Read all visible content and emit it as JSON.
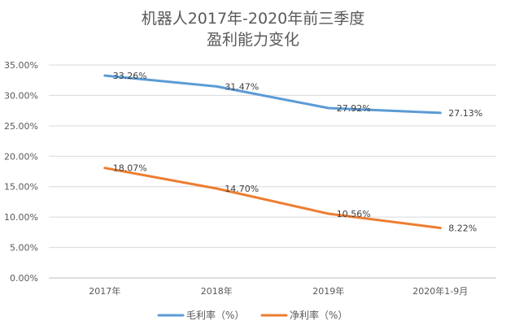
{
  "chart_data": {
    "type": "line",
    "title_lines": [
      "机器人2017年-2020年前三季度",
      "盈利能力变化"
    ],
    "categories": [
      "2017年",
      "2018年",
      "2019年",
      "2020年1-9月"
    ],
    "y_ticks": [
      "0.00%",
      "5.00%",
      "10.00%",
      "15.00%",
      "20.00%",
      "25.00%",
      "30.00%",
      "35.00%"
    ],
    "ylim": [
      0,
      35
    ],
    "grid": "horizontal",
    "legend_position": "bottom",
    "series": [
      {
        "name": "毛利率（%）",
        "color": "#5B9BD5",
        "values": [
          33.26,
          31.47,
          27.92,
          27.13
        ],
        "labels": [
          "33.26%",
          "31.47%",
          "27.92%",
          "27.13%"
        ]
      },
      {
        "name": "净利率（%）",
        "color": "#ED7D31",
        "values": [
          18.07,
          14.7,
          10.56,
          8.22
        ],
        "labels": [
          "18.07%",
          "14.70%",
          "10.56%",
          "8.22%"
        ]
      }
    ]
  }
}
